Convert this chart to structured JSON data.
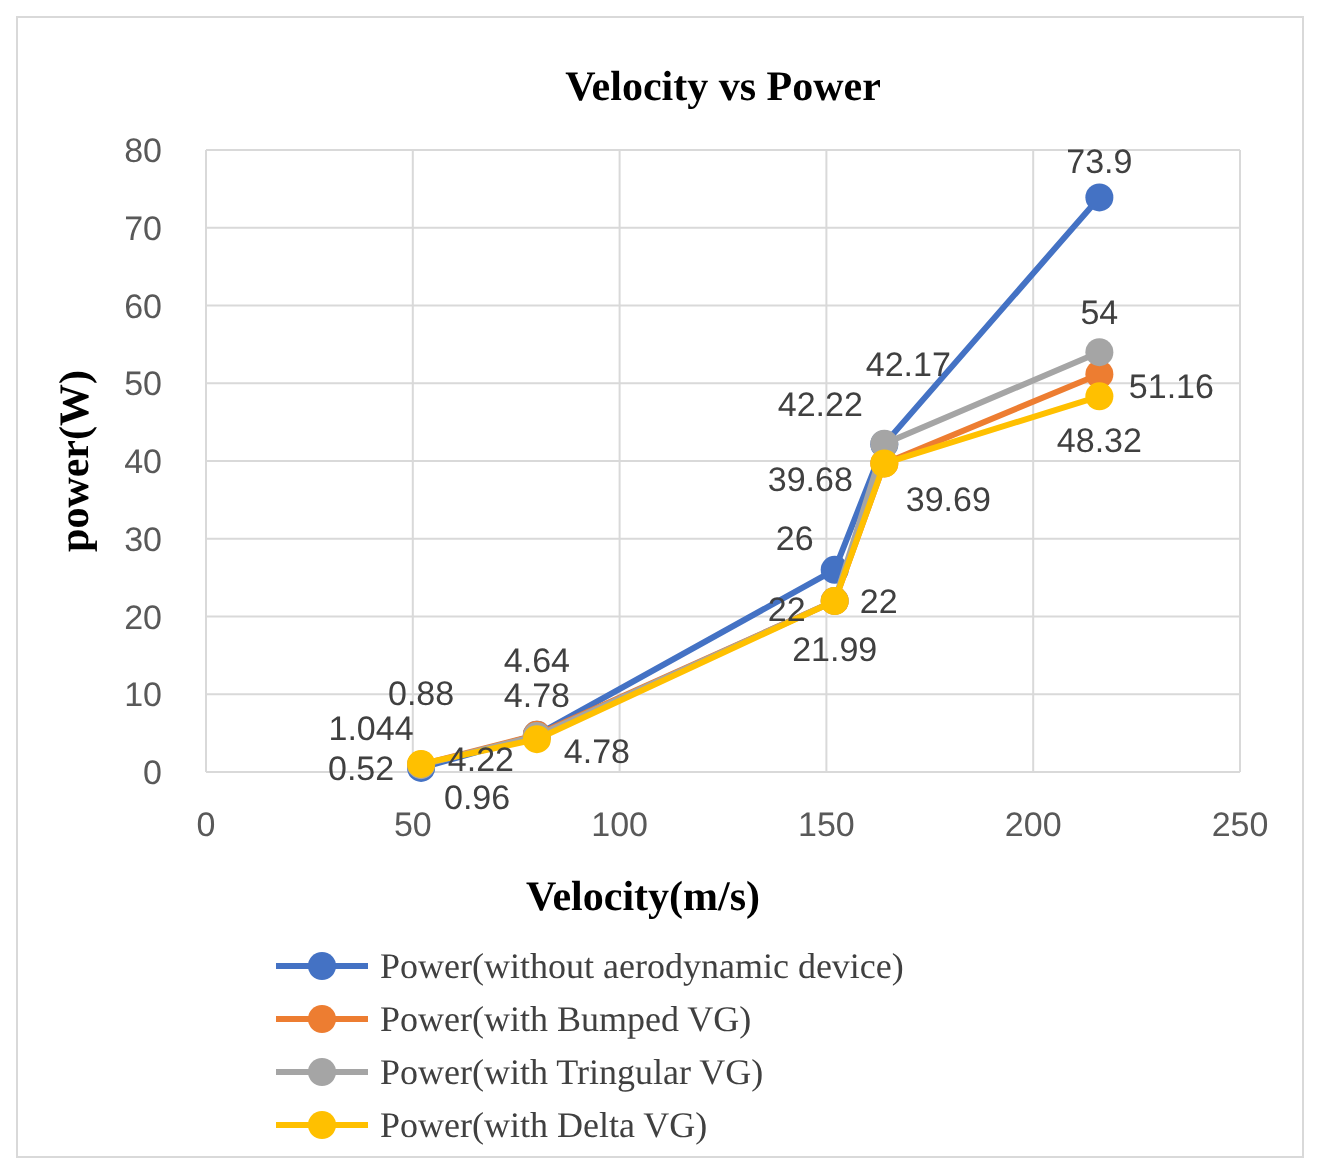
{
  "chart_data": {
    "type": "line",
    "title": "Velocity vs Power",
    "xlabel": "Velocity(m/s)",
    "ylabel": "power(W)",
    "x": [
      52,
      80,
      152,
      164,
      216
    ],
    "xlim": [
      0,
      250
    ],
    "xticks": [
      0,
      50,
      100,
      150,
      200,
      250
    ],
    "ylim": [
      0,
      80
    ],
    "yticks": [
      0,
      10,
      20,
      30,
      40,
      50,
      60,
      70,
      80
    ],
    "grid": true,
    "legend": "bottom",
    "marker": "circle",
    "data_labels": true,
    "series": [
      {
        "name": "Power(without aerodynamic device)",
        "color": "#4472c4",
        "values": [
          0.52,
          4.78,
          26,
          42.17,
          73.9
        ]
      },
      {
        "name": "Power(with Bumped VG)",
        "color": "#ed7d31",
        "values": [
          0.96,
          4.78,
          22,
          39.69,
          51.16
        ]
      },
      {
        "name": "Power(with Tringular VG)",
        "color": "#a5a5a5",
        "values": [
          0.88,
          4.64,
          22,
          42.22,
          54
        ]
      },
      {
        "name": "Power(with Delta VG)",
        "color": "#ffc000",
        "values": [
          1.044,
          4.22,
          21.99,
          39.68,
          48.32
        ]
      }
    ]
  }
}
